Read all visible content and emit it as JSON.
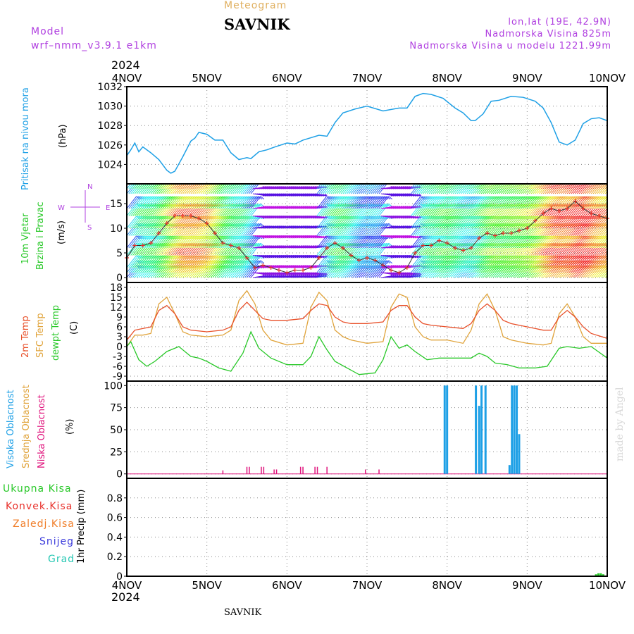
{
  "header": {
    "title": "SAVNIK",
    "subtitle": "Meteogram",
    "model_label": "Model",
    "model_name": "wrf–nmm_v3.9.1  e1km",
    "lonlat": "lon,lat (19E, 42.9N)",
    "elevation": "Nadmorska Visina 825m",
    "model_elevation": "Nadmorska Visina u modelu 1221.99m",
    "year_top": "2024",
    "year_bottom": "2024",
    "footer_title": "SAVNIK",
    "watermark": "made by Angel"
  },
  "colors": {
    "pressure": "#1ea0e6",
    "temp2m": "#e8502a",
    "sfc_temp": "#e0a33a",
    "dewpt": "#28c828",
    "high_cloud": "#1ea0e6",
    "mid_cloud": "#e0a33a",
    "low_cloud": "#e0147d",
    "total_precip": "#28c828",
    "conv_precip": "#e8302a",
    "frz_precip": "#f07d28",
    "snow": "#3c3cdc",
    "hail": "#28c8b4",
    "model": "#b040e0"
  },
  "panels": {
    "pressure": {
      "ylabel1": "Pritisak na nivou mora",
      "ylabel2": "(hPa)"
    },
    "wind": {
      "ylabel1": "10m Vjetar",
      "ylabel2": "Brzina i Pravac",
      "ylabel3": "(m/s)",
      "compass_n": "N",
      "compass_w": "W",
      "compass_e": "E",
      "compass_s": "S"
    },
    "temp": {
      "ylabel1": "2m Temp",
      "ylabel2": "SFC Temp",
      "ylabel3": "dewpt Temp",
      "ylabel4": "(C)"
    },
    "cloud": {
      "ylabel1": "Visoka Oblacnost",
      "ylabel2": "Srednja Oblacnost",
      "ylabel3": "Niska Oblacnost",
      "ylabel4": "(%)"
    },
    "precip": {
      "ylabel": "1hr Precip (mm)",
      "legend": [
        "Ukupna Kisa",
        "Konvek.Kisa",
        "Zaledj.Kisa",
        "Snijeg",
        "Grad"
      ]
    }
  },
  "chart_data": [
    {
      "type": "line",
      "title": "Pritisak na nivou mora",
      "ylabel": "(hPa)",
      "categories": [
        "4NOV",
        "5NOV",
        "6NOV",
        "7NOV",
        "8NOV",
        "9NOV",
        "10NOV"
      ],
      "ylim": [
        1022,
        1032
      ],
      "yticks": [
        1024,
        1026,
        1028,
        1030,
        1032
      ],
      "series": [
        {
          "name": "Pritisak",
          "x": [
            0,
            0.05,
            0.1,
            0.15,
            0.2,
            0.3,
            0.4,
            0.5,
            0.55,
            0.6,
            0.7,
            0.8,
            0.85,
            0.9,
            1.0,
            1.1,
            1.2,
            1.3,
            1.4,
            1.5,
            1.55,
            1.65,
            1.75,
            1.85,
            2.0,
            2.1,
            2.2,
            2.4,
            2.5,
            2.6,
            2.7,
            2.85,
            3.0,
            3.2,
            3.4,
            3.5,
            3.6,
            3.7,
            3.8,
            3.95,
            4.1,
            4.2,
            4.3,
            4.35,
            4.45,
            4.55,
            4.65,
            4.8,
            4.95,
            5.1,
            5.2,
            5.3,
            5.4,
            5.5,
            5.6,
            5.7,
            5.8,
            5.9,
            6.0
          ],
          "values": [
            1024.9,
            1025.5,
            1026.2,
            1025.3,
            1025.8,
            1025.2,
            1024.5,
            1023.4,
            1023.1,
            1023.3,
            1024.8,
            1026.4,
            1026.7,
            1027.3,
            1027.1,
            1026.5,
            1026.5,
            1025.2,
            1024.5,
            1024.7,
            1024.6,
            1025.3,
            1025.5,
            1025.8,
            1026.2,
            1026.1,
            1026.5,
            1027.0,
            1026.9,
            1028.3,
            1029.3,
            1029.7,
            1030.0,
            1029.5,
            1029.8,
            1029.8,
            1031.0,
            1031.3,
            1031.2,
            1030.8,
            1029.8,
            1029.3,
            1028.5,
            1028.5,
            1029.2,
            1030.5,
            1030.6,
            1031.0,
            1030.9,
            1030.5,
            1029.8,
            1028.3,
            1026.3,
            1026.0,
            1026.5,
            1028.2,
            1028.7,
            1028.8,
            1028.5
          ]
        }
      ]
    },
    {
      "type": "line",
      "title": "10m Vjetar Brzina i Pravac",
      "ylabel": "(m/s)",
      "categories": [
        "4NOV",
        "5NOV",
        "6NOV",
        "7NOV",
        "8NOV",
        "9NOV",
        "10NOV"
      ],
      "ylim": [
        -1,
        19
      ],
      "yticks": [
        0,
        5,
        10,
        15
      ],
      "series": [
        {
          "name": "Brzina",
          "x": [
            0,
            0.1,
            0.2,
            0.3,
            0.4,
            0.5,
            0.6,
            0.7,
            0.8,
            0.9,
            1.0,
            1.1,
            1.2,
            1.3,
            1.4,
            1.5,
            1.6,
            1.7,
            1.8,
            1.9,
            2.0,
            2.1,
            2.2,
            2.3,
            2.4,
            2.5,
            2.6,
            2.7,
            2.8,
            2.9,
            3.0,
            3.1,
            3.2,
            3.3,
            3.4,
            3.5,
            3.6,
            3.7,
            3.8,
            3.9,
            4.0,
            4.1,
            4.2,
            4.3,
            4.4,
            4.5,
            4.6,
            4.7,
            4.8,
            4.9,
            5.0,
            5.1,
            5.2,
            5.3,
            5.4,
            5.5,
            5.6,
            5.7,
            5.8,
            5.9,
            6.0
          ],
          "values": [
            4,
            6.5,
            6.5,
            7,
            9,
            11,
            12.5,
            12.5,
            12.5,
            12,
            11,
            9,
            7,
            6.5,
            6,
            4,
            2,
            2.5,
            2,
            1.5,
            1,
            1.5,
            1.5,
            2,
            4,
            6,
            7,
            6,
            4.5,
            3.5,
            4,
            3.5,
            2.5,
            1.5,
            1,
            2,
            5,
            6.5,
            6.5,
            7.5,
            7,
            6,
            5.5,
            6,
            8,
            9,
            8.5,
            9,
            9,
            9.5,
            10,
            11.5,
            13,
            14,
            13.5,
            14,
            15.5,
            14,
            13,
            12.5,
            12
          ]
        }
      ]
    },
    {
      "type": "line",
      "title": "2m Temp / SFC Temp / dewpt Temp",
      "ylabel": "(C)",
      "categories": [
        "4NOV",
        "5NOV",
        "6NOV",
        "7NOV",
        "8NOV",
        "9NOV",
        "10NOV"
      ],
      "ylim": [
        -10.5,
        19.5
      ],
      "yticks": [
        -9,
        -6,
        -3,
        0,
        3,
        6,
        9,
        12,
        15,
        18
      ],
      "series": [
        {
          "name": "2m Temp",
          "x": [
            0,
            0.1,
            0.2,
            0.3,
            0.4,
            0.5,
            0.6,
            0.7,
            0.8,
            1.0,
            1.2,
            1.3,
            1.4,
            1.5,
            1.6,
            1.7,
            1.8,
            2.0,
            2.2,
            2.3,
            2.4,
            2.5,
            2.6,
            2.7,
            2.8,
            3.0,
            3.2,
            3.3,
            3.4,
            3.5,
            3.6,
            3.7,
            3.8,
            4.0,
            4.2,
            4.3,
            4.4,
            4.5,
            4.6,
            4.7,
            4.8,
            5.0,
            5.2,
            5.3,
            5.4,
            5.5,
            5.6,
            5.7,
            5.8,
            6.0
          ],
          "values": [
            2,
            5,
            5.5,
            6,
            11,
            12.5,
            10,
            6,
            5,
            4.5,
            5,
            6,
            11,
            13.5,
            11,
            8.5,
            8,
            8,
            8.5,
            11,
            13,
            12.5,
            9,
            7.5,
            7,
            7,
            7.5,
            11,
            12.5,
            12.5,
            9,
            7,
            6.5,
            6,
            5.5,
            7,
            11,
            13,
            11,
            8,
            7,
            6,
            5,
            5,
            9,
            11,
            9,
            6,
            4,
            2.5
          ]
        },
        {
          "name": "SFC Temp",
          "x": [
            0,
            0.1,
            0.2,
            0.3,
            0.4,
            0.5,
            0.6,
            0.7,
            0.8,
            1.0,
            1.2,
            1.3,
            1.4,
            1.5,
            1.6,
            1.7,
            1.8,
            2.0,
            2.2,
            2.3,
            2.4,
            2.5,
            2.6,
            2.7,
            2.8,
            3.0,
            3.2,
            3.3,
            3.4,
            3.5,
            3.6,
            3.7,
            3.8,
            4.0,
            4.2,
            4.3,
            4.4,
            4.5,
            4.6,
            4.7,
            4.8,
            5.0,
            5.2,
            5.3,
            5.4,
            5.5,
            5.6,
            5.7,
            5.8,
            6.0
          ],
          "values": [
            0,
            3.5,
            3.5,
            4,
            13,
            15,
            10,
            4.5,
            3.5,
            3,
            3.5,
            5,
            14,
            17,
            13,
            5,
            2,
            0.5,
            1,
            12,
            16.5,
            14,
            5,
            3,
            2,
            1,
            1.5,
            12,
            16,
            15,
            6,
            3,
            2,
            2,
            1,
            5,
            13,
            16,
            11,
            3,
            2,
            1,
            0.5,
            1,
            10,
            13,
            9,
            3,
            1,
            1
          ]
        },
        {
          "name": "dewpt Temp",
          "x": [
            0,
            0.05,
            0.15,
            0.25,
            0.35,
            0.5,
            0.65,
            0.8,
            0.9,
            1.0,
            1.15,
            1.3,
            1.45,
            1.55,
            1.65,
            1.8,
            2.0,
            2.2,
            2.3,
            2.4,
            2.5,
            2.6,
            2.75,
            2.9,
            3.1,
            3.2,
            3.3,
            3.4,
            3.5,
            3.6,
            3.75,
            3.9,
            4.0,
            4.15,
            4.3,
            4.4,
            4.5,
            4.6,
            4.75,
            4.9,
            5.1,
            5.25,
            5.4,
            5.5,
            5.65,
            5.8,
            6.0
          ],
          "values": [
            0,
            1.5,
            -4,
            -6,
            -4.5,
            -1.5,
            0,
            -3,
            -3.5,
            -4.5,
            -6.5,
            -7.5,
            -2,
            4.5,
            -0.5,
            -3.5,
            -5.5,
            -5.5,
            -3,
            3,
            -1,
            -4.5,
            -6.5,
            -8.5,
            -8,
            -4,
            3,
            -0.5,
            0.5,
            -1.5,
            -4,
            -3.5,
            -3.5,
            -3.5,
            -3.5,
            -2,
            -3,
            -5,
            -5.5,
            -6.5,
            -6.5,
            -6,
            -0.5,
            0,
            -0.5,
            0,
            -3.5
          ]
        }
      ]
    },
    {
      "type": "bar",
      "title": "Visoka / Srednja / Niska Oblacnost",
      "ylabel": "(%)",
      "categories": [
        "4NOV",
        "5NOV",
        "6NOV",
        "7NOV",
        "8NOV",
        "9NOV",
        "10NOV"
      ],
      "ylim": [
        -5,
        105
      ],
      "yticks": [
        0,
        25,
        50,
        75,
        100
      ],
      "series": [
        {
          "name": "Visoka Oblacnost",
          "x": [
            3.97,
            4.0,
            4.36,
            4.4,
            4.43,
            4.48,
            4.78,
            4.81,
            4.84,
            4.87,
            4.9
          ],
          "values": [
            100,
            100,
            100,
            77,
            100,
            100,
            10,
            100,
            100,
            100,
            45
          ]
        },
        {
          "name": "Niska Oblacnost",
          "x": [
            1.2,
            1.5,
            1.53,
            1.68,
            1.71,
            1.84,
            1.87,
            2.17,
            2.2,
            2.35,
            2.38,
            2.5,
            2.98,
            3.15
          ],
          "values": [
            4,
            8,
            8,
            8,
            8,
            5,
            5,
            8,
            8,
            8,
            8,
            8,
            5,
            5
          ]
        }
      ]
    },
    {
      "type": "bar",
      "title": "1hr Precip",
      "ylabel": "1hr Precip (mm)",
      "categories": [
        "4NOV",
        "5NOV",
        "6NOV",
        "7NOV",
        "8NOV",
        "9NOV",
        "10NOV"
      ],
      "ylim": [
        0,
        1.0
      ],
      "yticks": [
        0,
        0.2,
        0.4,
        0.6,
        0.8
      ],
      "series": [
        {
          "name": "Ukupna Kisa",
          "x": [
            5.86,
            5.89,
            5.92,
            5.95
          ],
          "values": [
            0.02,
            0.03,
            0.03,
            0.02
          ]
        }
      ]
    }
  ]
}
